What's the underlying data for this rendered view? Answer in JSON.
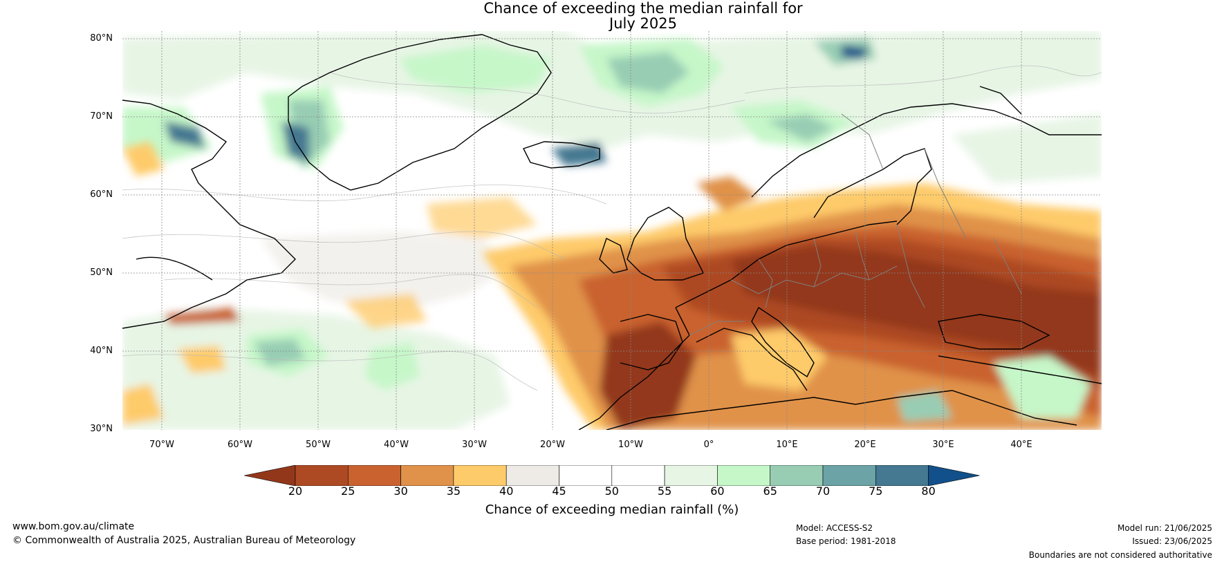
{
  "title": {
    "line1": "Chance of exceeding the median rainfall for",
    "line2": "July 2025"
  },
  "map": {
    "lat_range": [
      30,
      80
    ],
    "lon_range": [
      -75,
      50
    ],
    "graticule": "dotted",
    "lat_labels": [
      "80°N",
      "70°N",
      "60°N",
      "50°N",
      "40°N",
      "30°N"
    ],
    "lon_labels": [
      "70°W",
      "60°W",
      "50°W",
      "40°W",
      "30°W",
      "20°W",
      "10°W",
      "0°",
      "10°E",
      "20°E",
      "30°E",
      "40°E"
    ],
    "regions": [
      {
        "name": "europe-dry",
        "category": "20-25",
        "description_color": "#93371b"
      },
      {
        "name": "mediterranean-dry",
        "category": "30-35",
        "description_color": "#d9853f"
      }
    ]
  },
  "colorbar": {
    "label": "Chance of exceeding median rainfall (%)",
    "ticks": [
      "20",
      "25",
      "30",
      "35",
      "40",
      "45",
      "50",
      "55",
      "60",
      "65",
      "70",
      "75",
      "80"
    ],
    "colors": [
      "#93371b",
      "#ad4a23",
      "#c9622f",
      "#e0924a",
      "#fecb6a",
      "#eeebe6",
      "#ffffff",
      "#ffffff",
      "#e7f5e5",
      "#c6f7c9",
      "#98cdb4",
      "#6ba3a6",
      "#457891",
      "#11508a"
    ],
    "extend": "both"
  },
  "footer": {
    "website": "www.bom.gov.au/climate",
    "copyright": "© Commonwealth of Australia 2025, Australian Bureau of Meteorology",
    "model": "Model: ACCESS-S2",
    "base_period": "Base period: 1981-2018",
    "model_run": "Model run: 21/06/2025",
    "issued": "Issued: 23/06/2025",
    "boundaries": "Boundaries are not considered authoritative"
  }
}
